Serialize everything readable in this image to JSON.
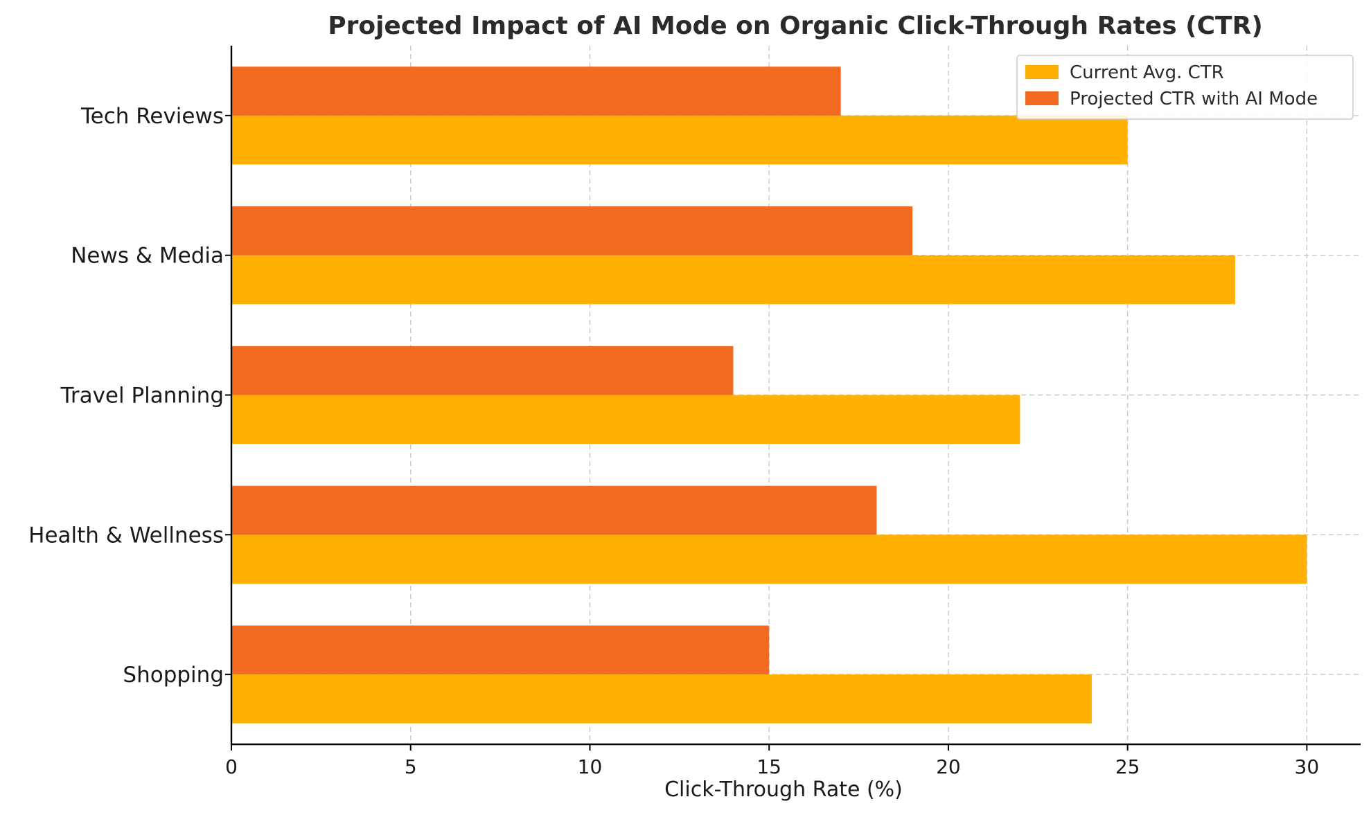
{
  "chart_data": {
    "type": "bar",
    "orientation": "horizontal",
    "title": "Projected Impact of AI Mode on Organic Click-Through Rates (CTR)",
    "xlabel": "Click-Through Rate (%)",
    "ylabel": "",
    "xlim": [
      0,
      31.5
    ],
    "xticks": [
      0,
      5,
      10,
      15,
      20,
      25,
      30
    ],
    "categories": [
      "Shopping",
      "Health & Wellness",
      "Travel Planning",
      "News & Media",
      "Tech Reviews"
    ],
    "series": [
      {
        "name": "Current Avg. CTR",
        "color": "#FFB000",
        "values": [
          24,
          30,
          22,
          28,
          25
        ]
      },
      {
        "name": "Projected CTR with AI Mode",
        "color": "#F26B21",
        "values": [
          15,
          18,
          14,
          19,
          17
        ]
      }
    ],
    "grid": true,
    "legend_position": "top-right"
  }
}
